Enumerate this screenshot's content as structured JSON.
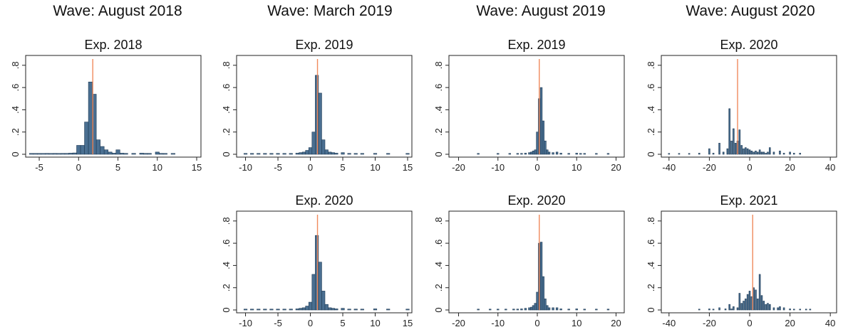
{
  "waves": [
    {
      "title": "Wave: August 2018"
    },
    {
      "title": "Wave: March 2019"
    },
    {
      "title": "Wave: August 2019"
    },
    {
      "title": "Wave: August 2020"
    }
  ],
  "colors": {
    "bar_fill": "#4a6f91",
    "bar_edge": "#1f3b55",
    "reference_line": "#f08a5d",
    "axis": "#222222"
  },
  "chart_data": [
    {
      "type": "bar",
      "wave": "Wave: August 2018",
      "title": "Exp. 2018",
      "xlim": [
        -6,
        15
      ],
      "ylim": [
        0,
        0.85
      ],
      "xticks": [
        -5,
        0,
        5,
        10,
        15
      ],
      "yticks": [
        0,
        0.2,
        0.4,
        0.6,
        0.8
      ],
      "ytick_labels": [
        "0",
        ".2",
        ".4",
        ".6",
        ".8"
      ],
      "bar_width": 0.5,
      "reference_line": 1.8,
      "bars": [
        [
          -6,
          0.005
        ],
        [
          -5.5,
          0.005
        ],
        [
          -5,
          0.005
        ],
        [
          -4.5,
          0.005
        ],
        [
          -4,
          0.008
        ],
        [
          -3.5,
          0.005
        ],
        [
          -3,
          0.008
        ],
        [
          -2.5,
          0.005
        ],
        [
          -2,
          0.008
        ],
        [
          -1.5,
          0.008
        ],
        [
          -1,
          0.01
        ],
        [
          -0.5,
          0.012
        ],
        [
          0,
          0.08
        ],
        [
          0.5,
          0.08
        ],
        [
          1,
          0.29
        ],
        [
          1.5,
          0.65
        ],
        [
          2,
          0.54
        ],
        [
          2.5,
          0.13
        ],
        [
          3,
          0.07
        ],
        [
          3.5,
          0.04
        ],
        [
          4,
          0.02
        ],
        [
          4.5,
          0.01
        ],
        [
          5,
          0.04
        ],
        [
          5.5,
          0.01
        ],
        [
          6,
          0.008
        ],
        [
          7,
          0.008
        ],
        [
          8,
          0.01
        ],
        [
          8.5,
          0.008
        ],
        [
          9,
          0.008
        ],
        [
          10,
          0.02
        ],
        [
          10.5,
          0.008
        ],
        [
          11,
          0.005
        ],
        [
          12,
          0.005
        ]
      ]
    },
    {
      "type": "bar",
      "wave": "Wave: March 2019",
      "title": "Exp. 2019",
      "xlim": [
        -10.5,
        15
      ],
      "ylim": [
        0,
        0.85
      ],
      "xticks": [
        -10,
        -5,
        0,
        5,
        10,
        15
      ],
      "yticks": [
        0,
        0.2,
        0.4,
        0.6,
        0.8
      ],
      "ytick_labels": [
        "0",
        ".2",
        ".4",
        ".6",
        ".8"
      ],
      "bar_width": 0.5,
      "reference_line": 1.1,
      "bars": [
        [
          -10,
          0.005
        ],
        [
          -9,
          0.005
        ],
        [
          -8,
          0.005
        ],
        [
          -7,
          0.005
        ],
        [
          -6,
          0.005
        ],
        [
          -5,
          0.005
        ],
        [
          -4,
          0.005
        ],
        [
          -3,
          0.005
        ],
        [
          -2,
          0.01
        ],
        [
          -1.5,
          0.015
        ],
        [
          -1,
          0.02
        ],
        [
          -0.5,
          0.035
        ],
        [
          0,
          0.06
        ],
        [
          0.5,
          0.2
        ],
        [
          1,
          0.71
        ],
        [
          1.5,
          0.55
        ],
        [
          2,
          0.13
        ],
        [
          2.5,
          0.04
        ],
        [
          3,
          0.02
        ],
        [
          3.5,
          0.015
        ],
        [
          4,
          0.01
        ],
        [
          5,
          0.015
        ],
        [
          6,
          0.008
        ],
        [
          7,
          0.005
        ],
        [
          8,
          0.005
        ],
        [
          10,
          0.008
        ],
        [
          12,
          0.005
        ],
        [
          15,
          0.005
        ]
      ]
    },
    {
      "type": "bar",
      "wave": "Wave: August 2019",
      "title": "Exp. 2019",
      "xlim": [
        -21,
        21
      ],
      "ylim": [
        0,
        0.85
      ],
      "xticks": [
        -20,
        -10,
        0,
        10,
        20
      ],
      "yticks": [
        0,
        0.2,
        0.4,
        0.6,
        0.8
      ],
      "ytick_labels": [
        "0",
        ".2",
        ".4",
        ".6",
        ".8"
      ],
      "bar_width": 0.5,
      "reference_line": 0.5,
      "bars": [
        [
          -15,
          0.005
        ],
        [
          -10,
          0.005
        ],
        [
          -7,
          0.005
        ],
        [
          -5,
          0.005
        ],
        [
          -4,
          0.008
        ],
        [
          -3,
          0.01
        ],
        [
          -2,
          0.015
        ],
        [
          -1.5,
          0.02
        ],
        [
          -1,
          0.03
        ],
        [
          -0.5,
          0.04
        ],
        [
          0,
          0.2
        ],
        [
          0.5,
          0.5
        ],
        [
          1,
          0.6
        ],
        [
          1.5,
          0.3
        ],
        [
          2,
          0.12
        ],
        [
          2.5,
          0.04
        ],
        [
          3,
          0.02
        ],
        [
          4,
          0.015
        ],
        [
          5,
          0.02
        ],
        [
          6,
          0.01
        ],
        [
          8,
          0.008
        ],
        [
          10,
          0.01
        ],
        [
          11,
          0.005
        ],
        [
          12,
          0.005
        ],
        [
          15,
          0.005
        ],
        [
          18,
          0.005
        ]
      ]
    },
    {
      "type": "bar",
      "wave": "Wave: August 2020",
      "title": "Exp. 2020",
      "xlim": [
        -41,
        41
      ],
      "ylim": [
        0,
        0.85
      ],
      "xticks": [
        -40,
        -20,
        0,
        20,
        40
      ],
      "yticks": [
        0,
        0.2,
        0.4,
        0.6,
        0.8
      ],
      "ytick_labels": [
        "0",
        ".2",
        ".4",
        ".6",
        ".8"
      ],
      "bar_width": 0.7,
      "reference_line": -6,
      "bars": [
        [
          -40,
          0.005
        ],
        [
          -35,
          0.005
        ],
        [
          -30,
          0.005
        ],
        [
          -25,
          0.01
        ],
        [
          -20,
          0.05
        ],
        [
          -18,
          0.01
        ],
        [
          -15,
          0.1
        ],
        [
          -13,
          0.02
        ],
        [
          -11,
          0.05
        ],
        [
          -10,
          0.41
        ],
        [
          -9,
          0.12
        ],
        [
          -8,
          0.23
        ],
        [
          -7,
          0.1
        ],
        [
          -6,
          0.12
        ],
        [
          -5,
          0.22
        ],
        [
          -4,
          0.08
        ],
        [
          -3,
          0.05
        ],
        [
          -2,
          0.06
        ],
        [
          -1,
          0.05
        ],
        [
          0,
          0.04
        ],
        [
          1,
          0.03
        ],
        [
          2,
          0.02
        ],
        [
          3,
          0.03
        ],
        [
          4,
          0.02
        ],
        [
          5,
          0.04
        ],
        [
          6,
          0.02
        ],
        [
          7,
          0.02
        ],
        [
          8,
          0.01
        ],
        [
          9,
          0.02
        ],
        [
          10,
          0.06
        ],
        [
          12,
          0.02
        ],
        [
          15,
          0.03
        ],
        [
          17,
          0.01
        ],
        [
          20,
          0.02
        ],
        [
          22,
          0.01
        ],
        [
          25,
          0.01
        ]
      ]
    },
    {
      "type": "bar",
      "wave": "Wave: March 2019",
      "title": "Exp. 2020",
      "xlim": [
        -10.5,
        15
      ],
      "ylim": [
        0,
        0.85
      ],
      "xticks": [
        -10,
        -5,
        0,
        5,
        10,
        15
      ],
      "yticks": [
        0,
        0.2,
        0.4,
        0.6,
        0.8
      ],
      "ytick_labels": [
        "0",
        ".2",
        ".4",
        ".6",
        ".8"
      ],
      "bar_width": 0.5,
      "reference_line": 1.1,
      "bars": [
        [
          -10,
          0.005
        ],
        [
          -9,
          0.005
        ],
        [
          -8,
          0.005
        ],
        [
          -7,
          0.005
        ],
        [
          -6,
          0.005
        ],
        [
          -5,
          0.005
        ],
        [
          -4,
          0.005
        ],
        [
          -3,
          0.008
        ],
        [
          -2,
          0.01
        ],
        [
          -1.5,
          0.015
        ],
        [
          -1,
          0.02
        ],
        [
          -0.5,
          0.035
        ],
        [
          0,
          0.07
        ],
        [
          0.5,
          0.32
        ],
        [
          1,
          0.67
        ],
        [
          1.5,
          0.43
        ],
        [
          2,
          0.17
        ],
        [
          2.5,
          0.05
        ],
        [
          3,
          0.02
        ],
        [
          3.5,
          0.015
        ],
        [
          4,
          0.01
        ],
        [
          5,
          0.015
        ],
        [
          6,
          0.008
        ],
        [
          7,
          0.008
        ],
        [
          8,
          0.005
        ],
        [
          10,
          0.01
        ],
        [
          12,
          0.008
        ],
        [
          15,
          0.005
        ]
      ]
    },
    {
      "type": "bar",
      "wave": "Wave: August 2019",
      "title": "Exp. 2020",
      "xlim": [
        -21,
        21
      ],
      "ylim": [
        0,
        0.85
      ],
      "xticks": [
        -20,
        -10,
        0,
        10,
        20
      ],
      "yticks": [
        0,
        0.2,
        0.4,
        0.6,
        0.8
      ],
      "ytick_labels": [
        "0",
        ".2",
        ".4",
        ".6",
        ".8"
      ],
      "bar_width": 0.5,
      "reference_line": 0.5,
      "bars": [
        [
          -15,
          0.005
        ],
        [
          -12,
          0.005
        ],
        [
          -10,
          0.005
        ],
        [
          -8,
          0.005
        ],
        [
          -6,
          0.008
        ],
        [
          -5,
          0.008
        ],
        [
          -4,
          0.01
        ],
        [
          -3,
          0.015
        ],
        [
          -2,
          0.02
        ],
        [
          -1.5,
          0.025
        ],
        [
          -1,
          0.04
        ],
        [
          -0.5,
          0.06
        ],
        [
          0,
          0.16
        ],
        [
          0.5,
          0.6
        ],
        [
          1,
          0.61
        ],
        [
          1.5,
          0.3
        ],
        [
          2,
          0.1
        ],
        [
          2.5,
          0.04
        ],
        [
          3,
          0.02
        ],
        [
          4,
          0.02
        ],
        [
          5,
          0.02
        ],
        [
          6,
          0.01
        ],
        [
          8,
          0.008
        ],
        [
          10,
          0.01
        ],
        [
          12,
          0.005
        ],
        [
          15,
          0.005
        ],
        [
          18,
          0.005
        ]
      ]
    },
    {
      "type": "bar",
      "wave": "Wave: August 2020",
      "title": "Exp. 2021",
      "xlim": [
        -41,
        41
      ],
      "ylim": [
        0,
        0.85
      ],
      "xticks": [
        -40,
        -20,
        0,
        20,
        40
      ],
      "yticks": [
        0,
        0.2,
        0.4,
        0.6,
        0.8
      ],
      "ytick_labels": [
        "0",
        ".2",
        ".4",
        ".6",
        ".8"
      ],
      "bar_width": 0.7,
      "reference_line": 1.5,
      "bars": [
        [
          -25,
          0.005
        ],
        [
          -20,
          0.01
        ],
        [
          -18,
          0.005
        ],
        [
          -15,
          0.02
        ],
        [
          -12,
          0.01
        ],
        [
          -10,
          0.05
        ],
        [
          -9,
          0.01
        ],
        [
          -8,
          0.03
        ],
        [
          -6,
          0.02
        ],
        [
          -5,
          0.15
        ],
        [
          -4,
          0.06
        ],
        [
          -3,
          0.08
        ],
        [
          -2,
          0.1
        ],
        [
          -1,
          0.14
        ],
        [
          0,
          0.17
        ],
        [
          1,
          0.12
        ],
        [
          2,
          0.2
        ],
        [
          3,
          0.18
        ],
        [
          4,
          0.1
        ],
        [
          5,
          0.32
        ],
        [
          6,
          0.13
        ],
        [
          7,
          0.08
        ],
        [
          8,
          0.05
        ],
        [
          9,
          0.06
        ],
        [
          10,
          0.05
        ],
        [
          12,
          0.02
        ],
        [
          14,
          0.02
        ],
        [
          15,
          0.03
        ],
        [
          17,
          0.02
        ],
        [
          20,
          0.01
        ],
        [
          22,
          0.005
        ],
        [
          25,
          0.005
        ],
        [
          28,
          0.005
        ],
        [
          30,
          0.005
        ]
      ]
    }
  ]
}
